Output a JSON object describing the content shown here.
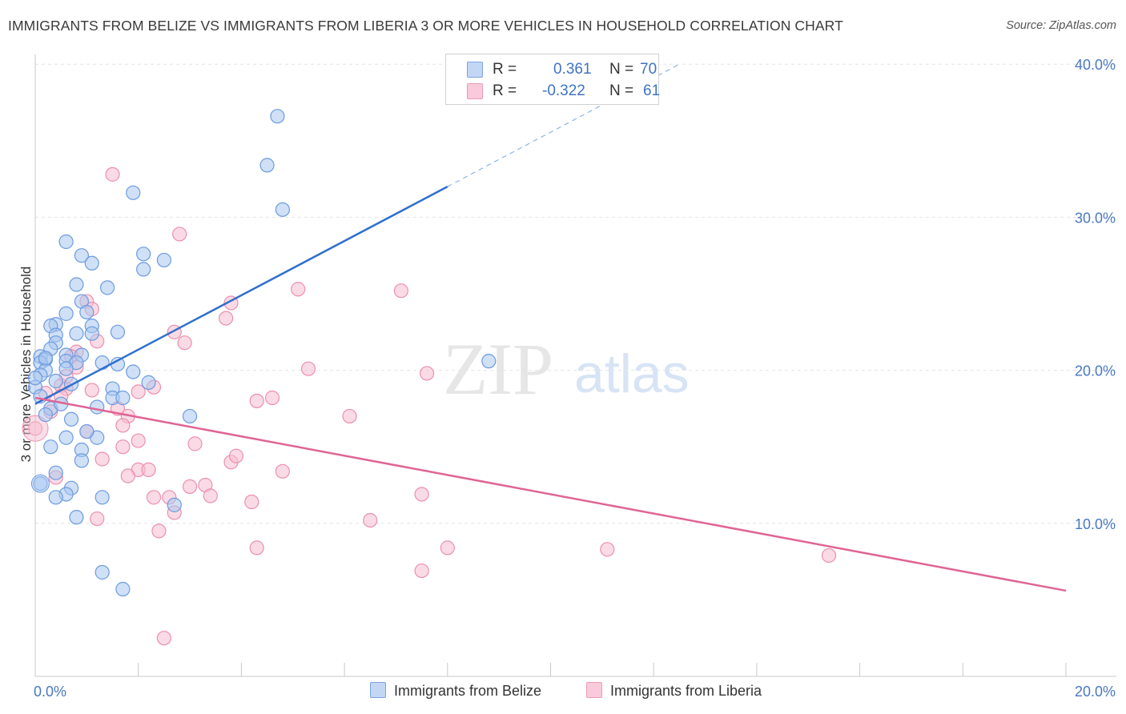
{
  "title": "IMMIGRANTS FROM BELIZE VS IMMIGRANTS FROM LIBERIA 3 OR MORE VEHICLES IN HOUSEHOLD CORRELATION CHART",
  "source": "Source: ZipAtlas.com",
  "watermark": {
    "zip": "ZIP",
    "atlas": "atlas"
  },
  "colors": {
    "belize_fill": "#a9c7ef",
    "belize_stroke": "#6c9be0",
    "belize_line": "#2f6fcd",
    "liberia_fill": "#f6bdd0",
    "liberia_stroke": "#ec8fae",
    "liberia_line": "#e06495"
  },
  "legend_top": {
    "rows": [
      {
        "r_label": "R =",
        "r_value": "0.361",
        "n_label": "N =",
        "n_value": "70"
      },
      {
        "r_label": "R =",
        "r_value": "-0.322",
        "n_label": "N =",
        "n_value": "61"
      }
    ]
  },
  "legend_bottom": {
    "belize": "Immigrants from Belize",
    "liberia": "Immigrants from Liberia"
  },
  "chart_data": {
    "type": "scatter",
    "title": "IMMIGRANTS FROM BELIZE VS IMMIGRANTS FROM LIBERIA 3 OR MORE VEHICLES IN HOUSEHOLD CORRELATION CHART",
    "xlabel": "",
    "ylabel": "3 or more Vehicles in Household",
    "xlim": [
      0,
      20
    ],
    "ylim": [
      0,
      40
    ],
    "x_tick_labels": [
      "0.0%",
      "20.0%"
    ],
    "y_ticks": [
      10,
      20,
      30,
      40
    ],
    "y_tick_labels": [
      "10.0%",
      "20.0%",
      "30.0%",
      "40.0%"
    ],
    "grid": true,
    "series": [
      {
        "name": "Immigrants from Belize",
        "r": 0.361,
        "n": 70,
        "trend": {
          "x0": 0.0,
          "y0": 17.8,
          "x1": 8.0,
          "y1": 32.0,
          "dash_x1": 12.5,
          "dash_y1": 40.0
        },
        "points": [
          [
            4.7,
            36.6
          ],
          [
            4.5,
            33.4
          ],
          [
            4.8,
            30.5
          ],
          [
            1.9,
            31.6
          ],
          [
            0.6,
            28.4
          ],
          [
            2.1,
            27.6
          ],
          [
            2.5,
            27.2
          ],
          [
            2.1,
            26.6
          ],
          [
            0.9,
            27.5
          ],
          [
            1.1,
            27.0
          ],
          [
            0.8,
            25.6
          ],
          [
            1.4,
            25.4
          ],
          [
            0.9,
            24.5
          ],
          [
            0.6,
            23.7
          ],
          [
            1.0,
            23.8
          ],
          [
            0.4,
            23.0
          ],
          [
            1.1,
            22.9
          ],
          [
            0.3,
            22.9
          ],
          [
            0.4,
            22.3
          ],
          [
            0.8,
            22.4
          ],
          [
            1.1,
            22.4
          ],
          [
            1.6,
            22.5
          ],
          [
            0.4,
            21.8
          ],
          [
            0.3,
            21.4
          ],
          [
            0.6,
            21.0
          ],
          [
            0.9,
            21.0
          ],
          [
            0.1,
            20.9
          ],
          [
            0.2,
            20.7
          ],
          [
            0.1,
            20.5
          ],
          [
            0.6,
            20.6
          ],
          [
            0.8,
            20.5
          ],
          [
            1.3,
            20.5
          ],
          [
            1.6,
            20.4
          ],
          [
            0.2,
            20.0
          ],
          [
            0.6,
            20.1
          ],
          [
            1.9,
            19.9
          ],
          [
            0.1,
            19.7
          ],
          [
            0.4,
            19.3
          ],
          [
            2.2,
            19.2
          ],
          [
            0.7,
            19.1
          ],
          [
            0.0,
            18.9
          ],
          [
            1.5,
            18.8
          ],
          [
            0.1,
            18.3
          ],
          [
            1.5,
            18.2
          ],
          [
            1.7,
            18.2
          ],
          [
            1.2,
            17.6
          ],
          [
            0.3,
            17.5
          ],
          [
            0.2,
            17.1
          ],
          [
            3.0,
            17.0
          ],
          [
            0.7,
            16.8
          ],
          [
            0.6,
            15.6
          ],
          [
            1.2,
            15.6
          ],
          [
            0.9,
            14.8
          ],
          [
            0.9,
            14.1
          ],
          [
            0.4,
            13.3
          ],
          [
            0.1,
            12.6
          ],
          [
            0.7,
            12.3
          ],
          [
            0.6,
            11.9
          ],
          [
            0.4,
            11.7
          ],
          [
            1.3,
            11.7
          ],
          [
            2.7,
            11.2
          ],
          [
            0.8,
            10.4
          ],
          [
            1.3,
            6.8
          ],
          [
            1.7,
            5.7
          ],
          [
            8.8,
            20.6
          ],
          [
            0.2,
            20.8
          ],
          [
            0.0,
            19.5
          ],
          [
            0.5,
            17.8
          ],
          [
            1.0,
            16.0
          ],
          [
            0.3,
            15.0
          ]
        ]
      },
      {
        "name": "Immigrants from Liberia",
        "r": -0.322,
        "n": 61,
        "trend": {
          "x0": 0.0,
          "y0": 18.2,
          "x1": 20.0,
          "y1": 5.6
        },
        "points": [
          [
            1.5,
            32.8
          ],
          [
            2.8,
            28.9
          ],
          [
            1.0,
            24.5
          ],
          [
            1.1,
            24.0
          ],
          [
            5.1,
            25.3
          ],
          [
            7.1,
            25.2
          ],
          [
            3.8,
            24.4
          ],
          [
            3.7,
            23.4
          ],
          [
            2.7,
            22.5
          ],
          [
            2.9,
            21.8
          ],
          [
            1.2,
            21.9
          ],
          [
            0.8,
            21.2
          ],
          [
            0.7,
            20.9
          ],
          [
            0.8,
            20.2
          ],
          [
            5.3,
            20.1
          ],
          [
            7.6,
            19.8
          ],
          [
            0.5,
            19.0
          ],
          [
            0.6,
            18.8
          ],
          [
            2.3,
            18.9
          ],
          [
            2.0,
            18.6
          ],
          [
            0.2,
            18.5
          ],
          [
            0.5,
            18.3
          ],
          [
            1.1,
            18.7
          ],
          [
            4.6,
            18.2
          ],
          [
            4.3,
            18.0
          ],
          [
            1.6,
            17.5
          ],
          [
            0.3,
            17.3
          ],
          [
            1.8,
            17.0
          ],
          [
            6.1,
            17.0
          ],
          [
            0.0,
            16.2
          ],
          [
            1.7,
            16.4
          ],
          [
            2.0,
            15.4
          ],
          [
            3.1,
            15.2
          ],
          [
            1.7,
            15.0
          ],
          [
            1.3,
            14.2
          ],
          [
            3.8,
            14.0
          ],
          [
            3.9,
            14.4
          ],
          [
            2.0,
            13.5
          ],
          [
            2.2,
            13.5
          ],
          [
            1.8,
            13.1
          ],
          [
            4.8,
            13.4
          ],
          [
            0.4,
            13.0
          ],
          [
            3.0,
            12.4
          ],
          [
            3.3,
            12.5
          ],
          [
            3.4,
            11.8
          ],
          [
            2.3,
            11.7
          ],
          [
            2.6,
            11.7
          ],
          [
            4.2,
            11.4
          ],
          [
            7.5,
            11.9
          ],
          [
            2.7,
            10.7
          ],
          [
            1.2,
            10.3
          ],
          [
            6.5,
            10.2
          ],
          [
            2.4,
            9.5
          ],
          [
            4.3,
            8.4
          ],
          [
            8.0,
            8.4
          ],
          [
            11.1,
            8.3
          ],
          [
            15.4,
            7.9
          ],
          [
            7.5,
            6.9
          ],
          [
            2.5,
            2.5
          ],
          [
            1.0,
            16.0
          ],
          [
            0.6,
            19.6
          ]
        ]
      }
    ]
  }
}
